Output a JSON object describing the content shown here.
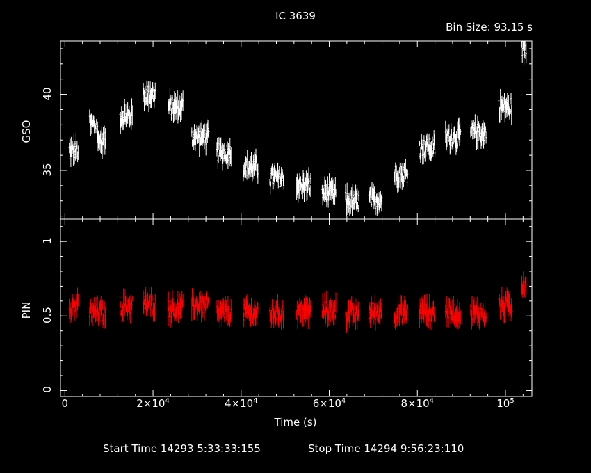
{
  "title": "IC 3639",
  "bin_size_label": "Bin Size: 93.15 s",
  "start_time_label": "Start Time 14293  5:33:33:155",
  "stop_time_label": "Stop Time 14294  9:56:23:110",
  "chart_data": [
    {
      "type": "scatter",
      "panel": "top",
      "ylabel": "GSO",
      "ylim": [
        31.8,
        43.5
      ],
      "yticks": [
        {
          "value": 35,
          "label": "35"
        },
        {
          "value": 40,
          "label": "40"
        }
      ],
      "color": "#ffffff",
      "segments": [
        {
          "x_start": 1000,
          "x_end": 3000,
          "y": 36.3
        },
        {
          "x_start": 5600,
          "x_end": 7400,
          "y": 38.0
        },
        {
          "x_start": 7400,
          "x_end": 9200,
          "y": 36.9
        },
        {
          "x_start": 12500,
          "x_end": 15300,
          "y": 38.6
        },
        {
          "x_start": 17800,
          "x_end": 20500,
          "y": 40.0
        },
        {
          "x_start": 23500,
          "x_end": 26800,
          "y": 39.2
        },
        {
          "x_start": 28800,
          "x_end": 32700,
          "y": 37.2
        },
        {
          "x_start": 34500,
          "x_end": 37700,
          "y": 36.2
        },
        {
          "x_start": 40500,
          "x_end": 43800,
          "y": 35.2
        },
        {
          "x_start": 46500,
          "x_end": 49700,
          "y": 34.5
        },
        {
          "x_start": 52600,
          "x_end": 55800,
          "y": 34.0
        },
        {
          "x_start": 58400,
          "x_end": 61500,
          "y": 33.5
        },
        {
          "x_start": 63700,
          "x_end": 66700,
          "y": 33.0
        },
        {
          "x_start": 69000,
          "x_end": 72000,
          "y": 33.1
        },
        {
          "x_start": 74800,
          "x_end": 77800,
          "y": 34.8
        },
        {
          "x_start": 80500,
          "x_end": 84000,
          "y": 36.5
        },
        {
          "x_start": 86400,
          "x_end": 89800,
          "y": 37.2
        },
        {
          "x_start": 92100,
          "x_end": 95600,
          "y": 37.5
        },
        {
          "x_start": 98500,
          "x_end": 101500,
          "y": 39.2
        },
        {
          "x_start": 103700,
          "x_end": 104700,
          "y": 43.0
        }
      ]
    },
    {
      "type": "scatter",
      "panel": "bottom",
      "ylabel": "PIN",
      "ylim": [
        -0.04,
        1.15
      ],
      "yticks": [
        {
          "value": 0,
          "label": "0"
        },
        {
          "value": 0.5,
          "label": "0.5"
        },
        {
          "value": 1,
          "label": "1"
        }
      ],
      "color": "#ff0000",
      "segments": [
        {
          "x_start": 1000,
          "x_end": 3000,
          "y": 0.56
        },
        {
          "x_start": 5600,
          "x_end": 9200,
          "y": 0.52
        },
        {
          "x_start": 12500,
          "x_end": 15300,
          "y": 0.57
        },
        {
          "x_start": 17800,
          "x_end": 20500,
          "y": 0.58
        },
        {
          "x_start": 23500,
          "x_end": 26800,
          "y": 0.55
        },
        {
          "x_start": 28800,
          "x_end": 32700,
          "y": 0.57
        },
        {
          "x_start": 34500,
          "x_end": 37700,
          "y": 0.52
        },
        {
          "x_start": 40500,
          "x_end": 43800,
          "y": 0.52
        },
        {
          "x_start": 46500,
          "x_end": 49700,
          "y": 0.52
        },
        {
          "x_start": 52600,
          "x_end": 55800,
          "y": 0.53
        },
        {
          "x_start": 58400,
          "x_end": 61500,
          "y": 0.54
        },
        {
          "x_start": 63700,
          "x_end": 66700,
          "y": 0.51
        },
        {
          "x_start": 69000,
          "x_end": 72000,
          "y": 0.53
        },
        {
          "x_start": 74800,
          "x_end": 77800,
          "y": 0.52
        },
        {
          "x_start": 80500,
          "x_end": 84000,
          "y": 0.53
        },
        {
          "x_start": 86400,
          "x_end": 89800,
          "y": 0.53
        },
        {
          "x_start": 92100,
          "x_end": 95600,
          "y": 0.52
        },
        {
          "x_start": 98500,
          "x_end": 101500,
          "y": 0.57
        },
        {
          "x_start": 103700,
          "x_end": 104700,
          "y": 0.72
        }
      ]
    }
  ],
  "x_axis": {
    "label": "Time (s)",
    "xlim": [
      -1000,
      106000
    ],
    "ticks": [
      {
        "value": 0,
        "label": "0"
      },
      {
        "value": 20000,
        "mantissa": "2×10",
        "exp": "4"
      },
      {
        "value": 40000,
        "mantissa": "4×10",
        "exp": "4"
      },
      {
        "value": 60000,
        "mantissa": "6×10",
        "exp": "4"
      },
      {
        "value": 80000,
        "mantissa": "8×10",
        "exp": "4"
      },
      {
        "value": 100000,
        "mantissa": "10",
        "exp": "5"
      }
    ]
  }
}
